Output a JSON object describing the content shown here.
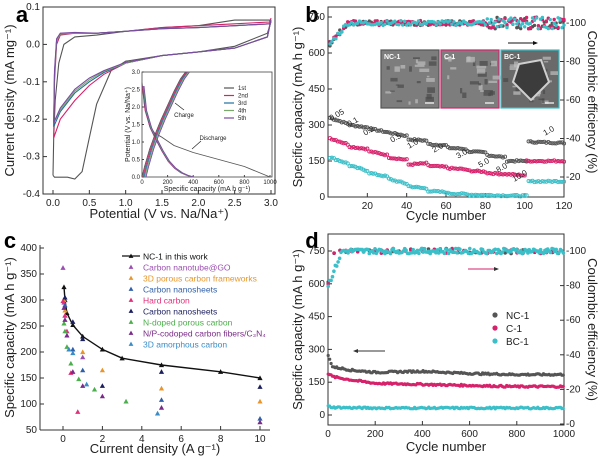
{
  "chart_data": [
    {
      "panel": "a",
      "type": "line",
      "xlabel": "Potential (V vs. Na/Na⁺)",
      "ylabel": "Current density (mA mg⁻¹)",
      "xlim": [
        -0.1,
        3.05
      ],
      "ylim": [
        -0.4,
        0.1
      ],
      "xticks": [
        "0.0",
        "0.5",
        "1.0",
        "1.5",
        "2.0",
        "2.5",
        "3.0"
      ],
      "yticks": [
        "-0.4",
        "-0.3",
        "-0.2",
        "-0.1",
        "0.0",
        "0.1"
      ],
      "series": [
        {
          "name": "1st",
          "color": "#555555",
          "x": [
            0.0,
            0.02,
            0.05,
            0.1,
            0.2,
            0.3,
            0.4,
            0.5,
            0.6,
            0.8,
            1.0,
            1.5,
            2.0,
            2.5,
            2.95,
            3.0,
            2.98,
            2.5,
            2.0,
            1.5,
            1.0,
            0.6,
            0.3,
            0.15,
            0.08,
            0.03,
            0.01,
            0.0
          ],
          "y": [
            -0.35,
            -0.355,
            -0.355,
            -0.355,
            -0.355,
            -0.36,
            -0.34,
            -0.25,
            -0.16,
            -0.07,
            -0.045,
            -0.03,
            -0.02,
            -0.005,
            0.03,
            0.06,
            0.065,
            0.065,
            0.05,
            0.045,
            0.035,
            0.025,
            0.02,
            0.0,
            -0.05,
            -0.15,
            -0.25,
            -0.35
          ]
        },
        {
          "name": "2nd",
          "color": "#d6226b",
          "x": [
            0.01,
            0.1,
            0.3,
            0.5,
            0.7,
            1.0,
            1.5,
            2.0,
            2.5,
            2.95,
            3.0,
            2.98,
            2.5,
            2.0,
            1.5,
            1.0,
            0.6,
            0.3,
            0.1,
            0.05,
            0.02,
            0.01
          ],
          "y": [
            -0.25,
            -0.2,
            -0.15,
            -0.11,
            -0.08,
            -0.05,
            -0.03,
            -0.02,
            -0.01,
            0.02,
            0.07,
            0.06,
            0.055,
            0.05,
            0.045,
            0.035,
            0.03,
            0.03,
            0.025,
            0.0,
            -0.1,
            -0.25
          ]
        },
        {
          "name": "3rd",
          "color": "#1e6fa0",
          "x": [
            0.01,
            0.1,
            0.3,
            0.5,
            0.7,
            1.0,
            1.5,
            2.0,
            2.5,
            2.95,
            3.0,
            2.98,
            2.5,
            2.0,
            1.5,
            1.0,
            0.6,
            0.3,
            0.1,
            0.05,
            0.02,
            0.01
          ],
          "y": [
            -0.22,
            -0.18,
            -0.13,
            -0.1,
            -0.075,
            -0.05,
            -0.03,
            -0.02,
            -0.01,
            0.02,
            0.065,
            0.055,
            0.05,
            0.045,
            0.042,
            0.035,
            0.03,
            0.03,
            0.028,
            0.01,
            -0.08,
            -0.22
          ]
        },
        {
          "name": "4th",
          "color": "#7aa86a",
          "x": [
            0.01,
            0.1,
            0.3,
            0.5,
            0.7,
            1.0,
            1.5,
            2.0,
            2.5,
            2.95,
            3.0,
            2.98,
            2.5,
            2.0,
            1.5,
            1.0,
            0.6,
            0.3,
            0.1,
            0.05,
            0.02,
            0.01
          ],
          "y": [
            -0.21,
            -0.175,
            -0.125,
            -0.095,
            -0.072,
            -0.05,
            -0.03,
            -0.02,
            -0.01,
            0.02,
            0.065,
            0.055,
            0.05,
            0.045,
            0.042,
            0.035,
            0.03,
            0.03,
            0.028,
            0.01,
            -0.08,
            -0.21
          ]
        },
        {
          "name": "5th",
          "color": "#7a4aa0",
          "x": [
            0.01,
            0.1,
            0.3,
            0.5,
            0.7,
            1.0,
            1.5,
            2.0,
            2.5,
            2.95,
            3.0,
            2.98,
            2.5,
            2.0,
            1.5,
            1.0,
            0.6,
            0.3,
            0.1,
            0.05,
            0.02,
            0.01
          ],
          "y": [
            -0.21,
            -0.17,
            -0.12,
            -0.09,
            -0.07,
            -0.048,
            -0.03,
            -0.02,
            -0.01,
            0.02,
            0.065,
            0.055,
            0.05,
            0.045,
            0.042,
            0.035,
            0.03,
            0.032,
            0.03,
            0.015,
            -0.07,
            -0.21
          ]
        }
      ],
      "inset": {
        "type": "line",
        "xlabel": "Specific capacity (mA h g⁻¹)",
        "ylabel": "Potential (V vs. Na/Na⁺)",
        "xlim": [
          0,
          1000
        ],
        "ylim": [
          0,
          3.0
        ],
        "xticks": [
          "0",
          "200",
          "400",
          "600",
          "800",
          "1000"
        ],
        "yticks": [
          "0.0",
          "0.5",
          "1.0",
          "1.5",
          "2.0",
          "2.5",
          "3.0"
        ],
        "legend": [
          "1st",
          "2nd",
          "3rd",
          "4th",
          "5th"
        ],
        "annotations": [
          "Charge",
          "Discharge"
        ],
        "discharge_1st": {
          "x": [
            0,
            20,
            60,
            100,
            150,
            250,
            400,
            600,
            800,
            1000
          ],
          "y": [
            2.7,
            2.0,
            1.45,
            1.25,
            1.15,
            0.9,
            0.7,
            0.5,
            0.3,
            0.0
          ]
        },
        "discharge_n": {
          "x": [
            0,
            20,
            60,
            100,
            150,
            200,
            250,
            300,
            350,
            390
          ],
          "y": [
            2.6,
            1.9,
            1.4,
            1.1,
            0.75,
            0.45,
            0.25,
            0.12,
            0.04,
            0.0
          ]
        },
        "charge": {
          "x": [
            0,
            20,
            60,
            100,
            150,
            200,
            250,
            300,
            340
          ],
          "y": [
            0.0,
            0.3,
            0.8,
            1.2,
            1.65,
            2.05,
            2.45,
            2.8,
            3.0
          ]
        }
      }
    },
    {
      "panel": "b",
      "type": "scatter",
      "xlabel": "Cycle number",
      "ylabel": "Specific capacity (mA h g⁻¹)",
      "ylabel_right": "Coulombic efficiency (%)",
      "xlim": [
        0,
        120
      ],
      "ylim": [
        0,
        800
      ],
      "ylim_right": [
        10,
        108
      ],
      "xticks": [
        "20",
        "40",
        "60",
        "80",
        "100",
        "120"
      ],
      "yticks": [
        "0",
        "150",
        "300",
        "450",
        "600",
        "750"
      ],
      "yticks_right": [
        "20",
        "40",
        "60",
        "80",
        "100"
      ],
      "rate_labels": [
        "0.05",
        "0.1",
        "0.2",
        "0.5",
        "1.0",
        "2.0",
        "3.0",
        "5.0",
        "8.0",
        "10.0",
        "1.0"
      ],
      "inset_images": [
        {
          "label": "NC-1",
          "border": "#555555"
        },
        {
          "label": "C-1",
          "border": "#d6226b"
        },
        {
          "label": "BC-1",
          "border": "#3bbfc8"
        }
      ],
      "series": [
        {
          "name": "NC-1",
          "color": "#555555",
          "steps": [
            [
              1,
              10,
              330,
              305
            ],
            [
              11,
              20,
              300,
              290
            ],
            [
              21,
              30,
              285,
              270
            ],
            [
              31,
              40,
              268,
              255
            ],
            [
              41,
              50,
              240,
              235
            ],
            [
              51,
              60,
              220,
              215
            ],
            [
              61,
              70,
              205,
              200
            ],
            [
              71,
              80,
              190,
              185
            ],
            [
              81,
              90,
              175,
              165
            ],
            [
              91,
              101,
              150,
              150
            ],
            [
              102,
              120,
              230,
              225
            ]
          ]
        },
        {
          "name": "C-1",
          "color": "#d6226b",
          "steps": [
            [
              1,
              10,
              245,
              220
            ],
            [
              11,
              20,
              210,
              200
            ],
            [
              21,
              30,
              190,
              175
            ],
            [
              31,
              40,
              165,
              155
            ],
            [
              41,
              50,
              135,
              140
            ],
            [
              51,
              60,
              130,
              125
            ],
            [
              61,
              70,
              120,
              115
            ],
            [
              71,
              80,
              110,
              105
            ],
            [
              81,
              90,
              100,
              95
            ],
            [
              91,
              100,
              95,
              90
            ],
            [
              101,
              120,
              150,
              150
            ]
          ]
        },
        {
          "name": "BC-1",
          "color": "#3bbfc8",
          "steps": [
            [
              1,
              10,
              165,
              140
            ],
            [
              11,
              20,
              130,
              110
            ],
            [
              21,
              30,
              100,
              85
            ],
            [
              31,
              40,
              75,
              55
            ],
            [
              41,
              50,
              45,
              35
            ],
            [
              51,
              60,
              25,
              20
            ],
            [
              61,
              70,
              15,
              12
            ],
            [
              71,
              80,
              10,
              8
            ],
            [
              81,
              90,
              8,
              6
            ],
            [
              91,
              101,
              6,
              5
            ],
            [
              102,
              120,
              65,
              65
            ]
          ]
        }
      ],
      "ce_series": {
        "initial": 88,
        "plateau": 100
      }
    },
    {
      "panel": "c",
      "type": "scatter",
      "xlabel": "Current density (A g⁻¹)",
      "ylabel": "Specific capacity (mA h g⁻¹)",
      "xlim": [
        -0.8,
        10.8
      ],
      "ylim": [
        50,
        410
      ],
      "xticks": [
        "0",
        "2",
        "4",
        "6",
        "8",
        "10"
      ],
      "yticks": [
        "50",
        "100",
        "150",
        "200",
        "250",
        "300",
        "350",
        "400"
      ],
      "series": [
        {
          "name": "NC-1 in this work",
          "color": "#111111",
          "line": true,
          "x": [
            0.05,
            0.1,
            0.2,
            0.5,
            1.0,
            2.0,
            3.0,
            5.0,
            8.0,
            10.0
          ],
          "y": [
            325,
            300,
            275,
            252,
            230,
            205,
            188,
            175,
            162,
            150
          ]
        },
        {
          "name": "Carbon nanotube@GO",
          "color": "#9a4fb0",
          "x": [
            0.0,
            0.05,
            0.1,
            1.0
          ],
          "y": [
            362,
            295,
            270,
            190
          ]
        },
        {
          "name": "3D porous carbon frameworks",
          "color": "#e8962c",
          "x": [
            0.05,
            0.1,
            1.0,
            2.0,
            5.0,
            10.0
          ],
          "y": [
            300,
            280,
            200,
            165,
            130,
            105
          ]
        },
        {
          "name": "Carbon nanosheets",
          "color": "#2f5fa8",
          "x": [
            0.1,
            0.5,
            1.0,
            5.0,
            10.0
          ],
          "y": [
            290,
            205,
            165,
            108,
            72
          ]
        },
        {
          "name": "Hard carbon",
          "color": "#e0307a",
          "x": [
            0.0,
            0.1,
            0.2,
            0.4,
            0.75
          ],
          "y": [
            298,
            270,
            240,
            160,
            85
          ]
        },
        {
          "name": "Carbon nanosheets",
          "color": "#1c1f5e",
          "x": [
            0.1,
            0.5,
            1.0,
            2.0,
            5.0,
            10.0
          ],
          "y": [
            305,
            258,
            225,
            135,
            162,
            133
          ]
        },
        {
          "name": "N-doped porous carbon",
          "color": "#4cae4c",
          "x": [
            0.05,
            0.1,
            0.2,
            0.4,
            0.8,
            1.6,
            3.2
          ],
          "y": [
            255,
            240,
            210,
            178,
            148,
            128,
            105
          ]
        },
        {
          "name": "N/P-codoped carbon fibers/C₃N₄",
          "color": "#7a2a88",
          "x": [
            0.05,
            0.1,
            0.2,
            0.5,
            1.0,
            2.0,
            5.0,
            10.0
          ],
          "y": [
            285,
            262,
            232,
            162,
            135,
            115,
            93,
            65
          ]
        },
        {
          "name": "3D amorphous carbon",
          "color": "#3a8cc8",
          "x": [
            0.3,
            0.5,
            1.2,
            4.8
          ],
          "y": [
            205,
            198,
            138,
            82
          ]
        }
      ]
    },
    {
      "panel": "d",
      "type": "scatter",
      "xlabel": "Cycle number",
      "ylabel": "Specific capacity (mA h g⁻¹)",
      "ylabel_right": "Coulombic efficiency (%)",
      "xlim": [
        0,
        1000
      ],
      "ylim": [
        -60,
        810
      ],
      "ylim_right": [
        0,
        108
      ],
      "xticks": [
        "0",
        "200",
        "400",
        "600",
        "800",
        "1000"
      ],
      "yticks": [
        "0",
        "150",
        "300",
        "450",
        "600",
        "750"
      ],
      "yticks_right": [
        "0",
        "20",
        "40",
        "60",
        "80",
        "100"
      ],
      "series": [
        {
          "name": "NC-1",
          "color": "#555555",
          "x": [
            1,
            20,
            100,
            200,
            400,
            600,
            800,
            1000
          ],
          "y": [
            270,
            220,
            205,
            195,
            200,
            190,
            185,
            185
          ]
        },
        {
          "name": "C-1",
          "color": "#d6226b",
          "x": [
            1,
            20,
            100,
            200,
            400,
            600,
            800,
            1000
          ],
          "y": [
            190,
            175,
            160,
            145,
            140,
            135,
            130,
            130
          ]
        },
        {
          "name": "BC-1",
          "color": "#3bbfc8",
          "x": [
            1,
            20,
            100,
            200,
            400,
            600,
            800,
            1000
          ],
          "y": [
            40,
            35,
            33,
            32,
            32,
            32,
            32,
            32
          ]
        }
      ],
      "ce_series": {
        "initial": 80,
        "plateau": 100
      }
    }
  ],
  "panel_labels": [
    "a",
    "b",
    "c",
    "d"
  ]
}
